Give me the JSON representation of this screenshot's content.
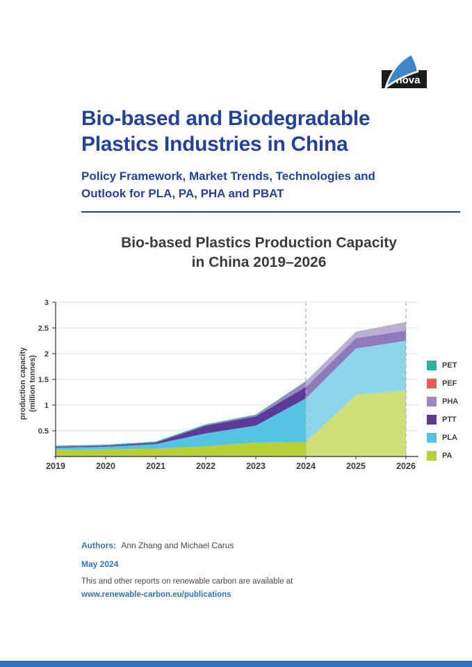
{
  "page": {
    "title_lines": [
      "Bio-based and Biodegradable",
      "Plastics Industries in China"
    ],
    "subtitle_lines": [
      "Policy Framework, Market Trends, Technologies and",
      "Outlook for PLA, PA, PHA and PBAT"
    ]
  },
  "logo": {
    "text": "nova"
  },
  "chart_data": {
    "type": "area",
    "stacked": true,
    "title_lines": [
      "Bio-based Plastics Production Capacity",
      "in China 2019–2026"
    ],
    "ylabel_lines": [
      "production capacity",
      "(million tonnes)"
    ],
    "x": [
      2019,
      2020,
      2021,
      2022,
      2023,
      2024,
      2025,
      2026
    ],
    "xticklabels": [
      "2019",
      "2020",
      "2021",
      "2022",
      "2023",
      "2024",
      "2025",
      "2026"
    ],
    "yticks": [
      0.5,
      1,
      1.5,
      2,
      2.5,
      3
    ],
    "ytick_labels": [
      "0.5",
      "1",
      "1.5",
      "2",
      "2.5",
      "3"
    ],
    "ylim": [
      0,
      3
    ],
    "grid": true,
    "legend_position": "right",
    "forecast_from": 2024,
    "dashed_lines_at": [
      2024,
      2026
    ],
    "series": [
      {
        "name": "PA",
        "color": "#b9cf35",
        "values": [
          0.13,
          0.14,
          0.15,
          0.2,
          0.27,
          0.28,
          1.2,
          1.28
        ]
      },
      {
        "name": "PLA",
        "color": "#55c3e2",
        "values": [
          0.04,
          0.05,
          0.09,
          0.25,
          0.33,
          0.85,
          0.9,
          0.97
        ]
      },
      {
        "name": "PTT",
        "color": "#5a3b98",
        "values": [
          0.02,
          0.02,
          0.03,
          0.15,
          0.18,
          0.22,
          0.2,
          0.2
        ]
      },
      {
        "name": "PHA",
        "color": "#9c86c4",
        "values": [
          0.005,
          0.005,
          0.005,
          0.01,
          0.02,
          0.1,
          0.1,
          0.13
        ]
      },
      {
        "name": "PET",
        "color": "#2fb29a",
        "values": [
          0.015,
          0.015,
          0.015,
          0.015,
          0.015,
          0.015,
          0.015,
          0.015
        ]
      },
      {
        "name": "PEF",
        "color": "#e85d55",
        "values": [
          0,
          0,
          0,
          0,
          0,
          0,
          0.01,
          0.02
        ]
      }
    ],
    "legend": [
      {
        "label": "PET",
        "color": "#2fb29a"
      },
      {
        "label": "PEF",
        "color": "#e85d55"
      },
      {
        "label": "PHA",
        "color": "#9c86c4"
      },
      {
        "label": "PTT",
        "color": "#5a3b98"
      },
      {
        "label": "PLA",
        "color": "#55c3e2"
      },
      {
        "label": "PA",
        "color": "#b9cf35"
      }
    ]
  },
  "footer": {
    "authors_label": "Authors:",
    "authors": "Ann Zhang and Michael Carus",
    "date": "May 2024",
    "note": "This and other reports on renewable carbon are available at",
    "url": "www.renewable-carbon.eu/publications"
  },
  "colors": {
    "navy": "#23429a",
    "accent": "#2e75c4",
    "ink": "#3b3b3b",
    "body_text": "#4a4a4a",
    "logo_blue": "#3e86c8",
    "logo_black": "#1b1b1b",
    "axis": "#4a4a4a",
    "gridline": "#dedede",
    "dashed_line": "#ababab",
    "footer_bar": "#2f73bd"
  }
}
